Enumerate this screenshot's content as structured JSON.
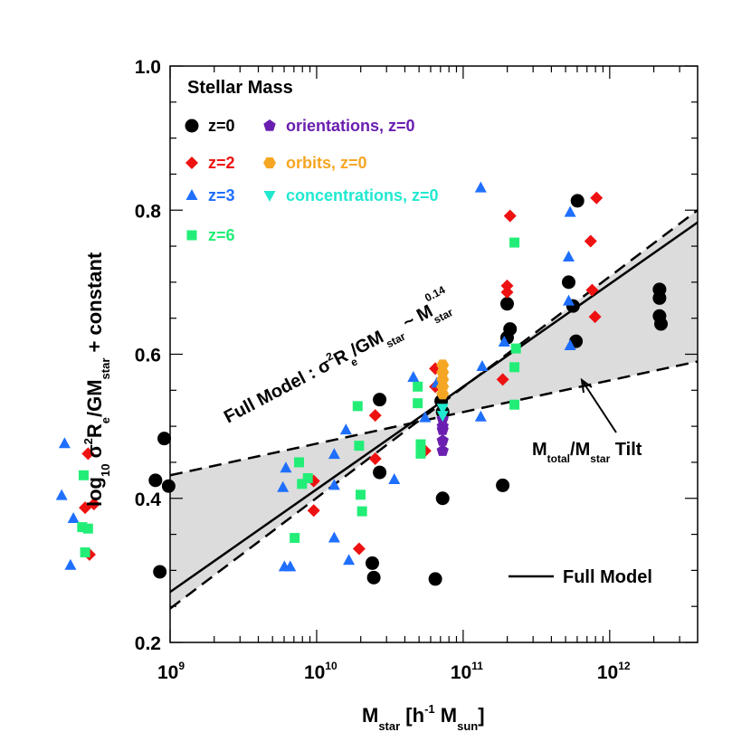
{
  "chart_data": {
    "type": "scatter",
    "title": "Stellar Mass",
    "xscale": "log",
    "xlim_log10": [
      9,
      12.6
    ],
    "ylim": [
      0.2,
      1.0
    ],
    "xticks": [
      {
        "log10": 9,
        "base": "10",
        "exp": "9"
      },
      {
        "log10": 10,
        "base": "10",
        "exp": "10"
      },
      {
        "log10": 11,
        "base": "10",
        "exp": "11"
      },
      {
        "log10": 12,
        "base": "10",
        "exp": "12"
      }
    ],
    "yticks": [
      {
        "value": 0.2,
        "label": "0.2"
      },
      {
        "value": 0.4,
        "label": "0.4"
      },
      {
        "value": 0.6,
        "label": "0.6"
      },
      {
        "value": 0.8,
        "label": "0.8"
      },
      {
        "value": 1.0,
        "label": "1.0"
      }
    ],
    "xlabel": {
      "main": "M",
      "sub": "star",
      "mid": " [h",
      "sup": "-1",
      "mid2": " M",
      "sub2": "sun",
      "end": "]"
    },
    "ylabel": {
      "a": "log",
      "a_sub": "10",
      "b": " σ",
      "b_sup": "2",
      "c": "R",
      "c_sub": "e",
      "d": "/GM",
      "d_sub": "star",
      "e": " + constant"
    },
    "series": [
      {
        "name": "z=0",
        "color": "#000000",
        "marker": "circle",
        "points": [
          [
            8.93,
            0.298
          ],
          [
            8.96,
            0.483
          ],
          [
            8.99,
            0.417
          ],
          [
            8.9,
            0.425
          ],
          [
            10.38,
            0.31
          ],
          [
            10.39,
            0.29
          ],
          [
            10.43,
            0.537
          ],
          [
            10.43,
            0.436
          ],
          [
            10.81,
            0.288
          ],
          [
            10.85,
            0.535
          ],
          [
            10.86,
            0.52
          ],
          [
            10.86,
            0.4
          ],
          [
            11.27,
            0.418
          ],
          [
            11.3,
            0.67
          ],
          [
            11.3,
            0.623
          ],
          [
            11.32,
            0.635
          ],
          [
            11.72,
            0.7
          ],
          [
            11.75,
            0.667
          ],
          [
            11.77,
            0.618
          ],
          [
            11.78,
            0.813
          ],
          [
            12.34,
            0.69
          ],
          [
            12.34,
            0.678
          ],
          [
            12.34,
            0.653
          ],
          [
            12.35,
            0.642
          ]
        ]
      },
      {
        "name": "z=2",
        "color": "#ee1111",
        "marker": "diamond",
        "points": [
          [
            8.44,
            0.462
          ],
          [
            8.42,
            0.387
          ],
          [
            8.48,
            0.392
          ],
          [
            8.45,
            0.322
          ],
          [
            9.98,
            0.424
          ],
          [
            9.98,
            0.383
          ],
          [
            10.29,
            0.33
          ],
          [
            10.4,
            0.515
          ],
          [
            10.4,
            0.455
          ],
          [
            10.74,
            0.466
          ],
          [
            10.81,
            0.58
          ],
          [
            10.81,
            0.555
          ],
          [
            11.27,
            0.565
          ],
          [
            11.3,
            0.695
          ],
          [
            11.3,
            0.686
          ],
          [
            11.32,
            0.792
          ],
          [
            11.87,
            0.757
          ],
          [
            11.88,
            0.689
          ],
          [
            11.9,
            0.652
          ],
          [
            11.91,
            0.817
          ]
        ]
      },
      {
        "name": "z=3",
        "color": "#1f6fff",
        "marker": "triangle-up",
        "points": [
          [
            8.28,
            0.476
          ],
          [
            8.26,
            0.404
          ],
          [
            8.34,
            0.372
          ],
          [
            8.32,
            0.307
          ],
          [
            9.77,
            0.415
          ],
          [
            9.78,
            0.305
          ],
          [
            9.82,
            0.305
          ],
          [
            9.79,
            0.442
          ],
          [
            10.12,
            0.418
          ],
          [
            10.12,
            0.345
          ],
          [
            10.22,
            0.314
          ],
          [
            10.12,
            0.461
          ],
          [
            10.2,
            0.495
          ],
          [
            10.53,
            0.426
          ],
          [
            10.66,
            0.568
          ],
          [
            10.74,
            0.512
          ],
          [
            10.82,
            0.56
          ],
          [
            11.12,
            0.513
          ],
          [
            11.13,
            0.583
          ],
          [
            11.12,
            0.831
          ],
          [
            11.28,
            0.617
          ],
          [
            11.72,
            0.735
          ],
          [
            11.72,
            0.674
          ],
          [
            11.73,
            0.612
          ],
          [
            11.73,
            0.797
          ]
        ]
      },
      {
        "name": "z=6",
        "color": "#22ee77",
        "marker": "square",
        "points": [
          [
            8.41,
            0.432
          ],
          [
            8.4,
            0.36
          ],
          [
            8.44,
            0.358
          ],
          [
            8.42,
            0.325
          ],
          [
            9.85,
            0.345
          ],
          [
            9.88,
            0.45
          ],
          [
            9.9,
            0.42
          ],
          [
            9.94,
            0.428
          ],
          [
            10.28,
            0.528
          ],
          [
            10.29,
            0.473
          ],
          [
            10.3,
            0.405
          ],
          [
            10.31,
            0.382
          ],
          [
            10.69,
            0.555
          ],
          [
            10.69,
            0.532
          ],
          [
            10.71,
            0.475
          ],
          [
            10.71,
            0.462
          ],
          [
            11.35,
            0.755
          ],
          [
            11.36,
            0.608
          ],
          [
            11.35,
            0.582
          ],
          [
            11.35,
            0.53
          ]
        ]
      },
      {
        "name": "orientations, z=0",
        "color": "#6a1fb0",
        "marker": "pentagon",
        "points": [
          [
            10.86,
            0.51
          ],
          [
            10.86,
            0.495
          ],
          [
            10.86,
            0.48
          ],
          [
            10.86,
            0.466
          ],
          [
            10.86,
            0.5
          ]
        ]
      },
      {
        "name": "orbits, z=0",
        "color": "#f5a623",
        "marker": "hexagon",
        "points": [
          [
            10.86,
            0.585
          ],
          [
            10.86,
            0.575
          ],
          [
            10.86,
            0.565
          ],
          [
            10.86,
            0.555
          ],
          [
            10.86,
            0.545
          ]
        ]
      },
      {
        "name": "concentrations, z=0",
        "color": "#22e8d0",
        "marker": "triangle-down",
        "points": [
          [
            10.86,
            0.525
          ],
          [
            10.86,
            0.515
          ]
        ]
      }
    ],
    "lines": [
      {
        "name": "Full Model",
        "style": "solid",
        "points": [
          [
            9.0,
            0.27
          ],
          [
            12.6,
            0.783
          ]
        ]
      },
      {
        "name": "upper bound",
        "style": "dashed",
        "points": [
          [
            9.0,
            0.247
          ],
          [
            12.6,
            0.8
          ]
        ]
      },
      {
        "name": "lower bound",
        "style": "dashed",
        "points": [
          [
            9.0,
            0.432
          ],
          [
            12.6,
            0.59
          ]
        ]
      }
    ],
    "annotations": {
      "full_model": {
        "a": "Full Model : σ",
        "a_sup": "2",
        "b": "R",
        "b_sub": "e",
        "c": "/GM",
        "c_sub": "star",
        "d": "  ~ M",
        "d_sup": "0.14",
        "d_sub": "star"
      },
      "tilt": {
        "a": "M",
        "a_sub": "total",
        "b": "/M",
        "b_sub": "star",
        "c": " Tilt"
      },
      "legend_line": "Full Model"
    },
    "legend_placement": "top-left"
  }
}
